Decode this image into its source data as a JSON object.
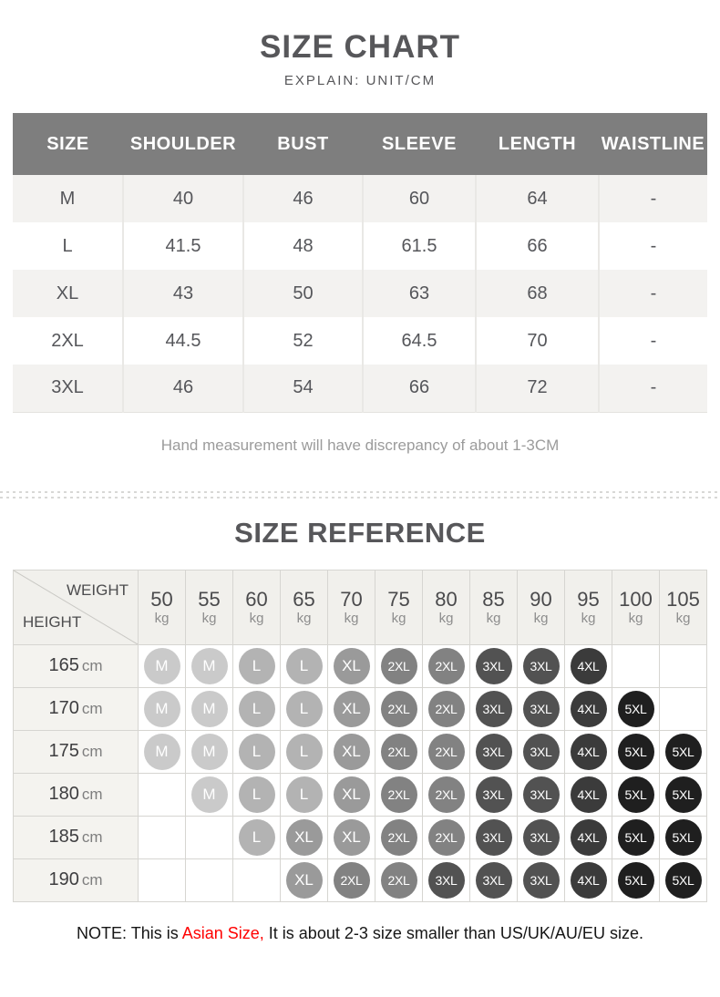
{
  "size_chart": {
    "title": "SIZE CHART",
    "subtitle": "EXPLAIN: UNIT/CM",
    "columns": [
      "SIZE",
      "SHOULDER",
      "BUST",
      "SLEEVE",
      "LENGTH",
      "WAISTLINE"
    ],
    "rows": [
      [
        "M",
        "40",
        "46",
        "60",
        "64",
        "-"
      ],
      [
        "L",
        "41.5",
        "48",
        "61.5",
        "66",
        "-"
      ],
      [
        "XL",
        "43",
        "50",
        "63",
        "68",
        "-"
      ],
      [
        "2XL",
        "44.5",
        "52",
        "64.5",
        "70",
        "-"
      ],
      [
        "3XL",
        "46",
        "54",
        "66",
        "72",
        "-"
      ]
    ],
    "note": "Hand measurement will have discrepancy of about 1-3CM",
    "header_bg": "#7e7e7e",
    "stripe_bg": "#f3f2f0"
  },
  "size_reference": {
    "title": "SIZE REFERENCE",
    "corner_top": "WEIGHT",
    "corner_bottom": "HEIGHT",
    "weights": [
      {
        "value": "50",
        "unit": "kg"
      },
      {
        "value": "55",
        "unit": "kg"
      },
      {
        "value": "60",
        "unit": "kg"
      },
      {
        "value": "65",
        "unit": "kg"
      },
      {
        "value": "70",
        "unit": "kg"
      },
      {
        "value": "75",
        "unit": "kg"
      },
      {
        "value": "80",
        "unit": "kg"
      },
      {
        "value": "85",
        "unit": "kg"
      },
      {
        "value": "90",
        "unit": "kg"
      },
      {
        "value": "95",
        "unit": "kg"
      },
      {
        "value": "100",
        "unit": "kg"
      },
      {
        "value": "105",
        "unit": "kg"
      }
    ],
    "rows": [
      {
        "height": "165",
        "unit": "cm",
        "sizes": [
          "M",
          "M",
          "L",
          "L",
          "XL",
          "2XL",
          "2XL",
          "3XL",
          "3XL",
          "4XL",
          "",
          ""
        ]
      },
      {
        "height": "170",
        "unit": "cm",
        "sizes": [
          "M",
          "M",
          "L",
          "L",
          "XL",
          "2XL",
          "2XL",
          "3XL",
          "3XL",
          "4XL",
          "5XL",
          ""
        ]
      },
      {
        "height": "175",
        "unit": "cm",
        "sizes": [
          "M",
          "M",
          "L",
          "L",
          "XL",
          "2XL",
          "2XL",
          "3XL",
          "3XL",
          "4XL",
          "5XL",
          "5XL"
        ]
      },
      {
        "height": "180",
        "unit": "cm",
        "sizes": [
          "",
          "M",
          "L",
          "L",
          "XL",
          "2XL",
          "2XL",
          "3XL",
          "3XL",
          "4XL",
          "5XL",
          "5XL"
        ]
      },
      {
        "height": "185",
        "unit": "cm",
        "sizes": [
          "",
          "",
          "L",
          "XL",
          "XL",
          "2XL",
          "2XL",
          "3XL",
          "3XL",
          "4XL",
          "5XL",
          "5XL"
        ]
      },
      {
        "height": "190",
        "unit": "cm",
        "sizes": [
          "",
          "",
          "",
          "XL",
          "2XL",
          "2XL",
          "3XL",
          "3XL",
          "3XL",
          "4XL",
          "5XL",
          "5XL"
        ]
      }
    ],
    "size_colors": {
      "M": "#cacaca",
      "L": "#b3b3b3",
      "XL": "#9a9a9a",
      "2XL": "#828282",
      "3XL": "#525252",
      "4XL": "#3b3b3b",
      "5XL": "#1f1f1f"
    }
  },
  "footer_note": {
    "prefix": "NOTE: This is ",
    "highlight": "Asian Size,",
    "suffix": " It is about 2-3 size smaller than US/UK/AU/EU size.",
    "highlight_color": "#ff0000"
  }
}
